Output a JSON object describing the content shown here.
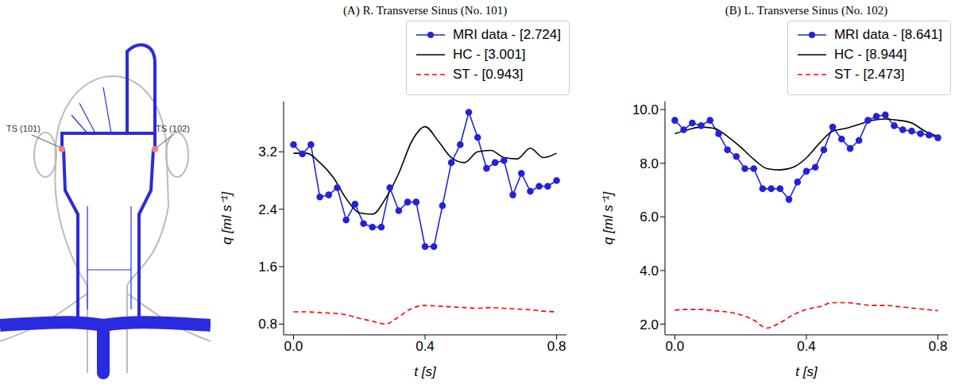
{
  "diagram": {
    "labels": [
      "TS (101)",
      "TS (102)"
    ]
  },
  "chart_data": [
    {
      "type": "line",
      "title": "(A) R. Transverse Sinus (No. 101)",
      "x_label": "t [s]",
      "y_label": "q [ml s⁻¹]",
      "xlim": [
        -0.03,
        0.83
      ],
      "xticks": [
        {
          "value": 0,
          "label": "0.0"
        },
        0.4,
        0.8
      ],
      "ylim": [
        0.65,
        3.9
      ],
      "yticks": [
        0.8,
        1.6,
        2.4,
        3.2
      ],
      "legend": "top",
      "series": [
        {
          "name": "MRI data - [2.724]",
          "color": "#2222dd",
          "marker": "circle",
          "line_style": "solid",
          "x": [
            0,
            0.027,
            0.053,
            0.08,
            0.107,
            0.133,
            0.16,
            0.187,
            0.213,
            0.24,
            0.267,
            0.293,
            0.32,
            0.347,
            0.373,
            0.4,
            0.427,
            0.453,
            0.48,
            0.507,
            0.533,
            0.56,
            0.587,
            0.613,
            0.64,
            0.667,
            0.693,
            0.72,
            0.747,
            0.773,
            0.8
          ],
          "values": [
            3.3,
            3.17,
            3.3,
            2.57,
            2.6,
            2.7,
            2.25,
            2.47,
            2.2,
            2.15,
            2.15,
            2.7,
            2.38,
            2.5,
            2.5,
            1.88,
            1.88,
            2.45,
            3.05,
            3.3,
            3.75,
            3.4,
            2.97,
            3.05,
            3.08,
            2.6,
            2.9,
            2.65,
            2.72,
            2.72,
            2.8
          ]
        },
        {
          "name": "HC - [3.001]",
          "color": "#000000",
          "marker": "none",
          "line_style": "solid",
          "x": [
            0,
            0.04,
            0.08,
            0.12,
            0.16,
            0.2,
            0.24,
            0.28,
            0.32,
            0.36,
            0.4,
            0.44,
            0.48,
            0.52,
            0.56,
            0.6,
            0.64,
            0.68,
            0.72,
            0.76,
            0.8
          ],
          "values": [
            3.18,
            3.18,
            3.05,
            2.85,
            2.55,
            2.35,
            2.33,
            2.55,
            2.9,
            3.35,
            3.55,
            3.35,
            3.12,
            3.05,
            3.2,
            3.22,
            3.12,
            3.1,
            3.25,
            3.12,
            3.18
          ]
        },
        {
          "name": "ST - [0.943]",
          "color": "#ff0000",
          "marker": "none",
          "line_style": "dashed",
          "x": [
            0,
            0.04,
            0.08,
            0.12,
            0.16,
            0.2,
            0.24,
            0.28,
            0.32,
            0.36,
            0.4,
            0.44,
            0.48,
            0.52,
            0.56,
            0.6,
            0.64,
            0.68,
            0.72,
            0.76,
            0.8
          ],
          "values": [
            0.97,
            0.97,
            0.96,
            0.95,
            0.93,
            0.88,
            0.84,
            0.8,
            0.9,
            1.02,
            1.06,
            1.05,
            1.04,
            1.03,
            1.02,
            1.03,
            1.02,
            1.01,
            1.0,
            0.98,
            0.97
          ]
        }
      ]
    },
    {
      "type": "line",
      "title": "(B) L. Transverse Sinus (No. 102)",
      "x_label": "t [s]",
      "y_label": "q [ml s⁻¹]",
      "xlim": [
        -0.03,
        0.83
      ],
      "xticks": [
        {
          "value": 0,
          "label": "0.0"
        },
        0.4,
        0.8
      ],
      "ylim": [
        1.6,
        10.3
      ],
      "yticks": [
        {
          "value": 2,
          "label": "2.0"
        },
        {
          "value": 4,
          "label": "4.0"
        },
        {
          "value": 6,
          "label": "6.0"
        },
        {
          "value": 8,
          "label": "8.0"
        },
        {
          "value": 10,
          "label": "10.0"
        }
      ],
      "legend": "top",
      "series": [
        {
          "name": "MRI data - [8.641]",
          "color": "#2222dd",
          "marker": "circle",
          "line_style": "solid",
          "x": [
            0,
            0.027,
            0.053,
            0.08,
            0.107,
            0.133,
            0.16,
            0.187,
            0.213,
            0.24,
            0.267,
            0.293,
            0.32,
            0.347,
            0.373,
            0.4,
            0.427,
            0.453,
            0.48,
            0.507,
            0.533,
            0.56,
            0.587,
            0.613,
            0.64,
            0.667,
            0.693,
            0.72,
            0.747,
            0.773,
            0.8
          ],
          "values": [
            9.6,
            9.25,
            9.5,
            9.4,
            9.6,
            9.1,
            8.5,
            8.25,
            7.8,
            7.8,
            7.05,
            7.05,
            7.05,
            6.65,
            7.3,
            7.7,
            7.85,
            8.5,
            9.35,
            8.9,
            8.55,
            8.85,
            9.6,
            9.75,
            9.8,
            9.4,
            9.25,
            9.2,
            9.1,
            9.05,
            8.95
          ]
        },
        {
          "name": "HC - [8.944]",
          "color": "#000000",
          "marker": "none",
          "line_style": "solid",
          "x": [
            0,
            0.04,
            0.08,
            0.12,
            0.16,
            0.2,
            0.24,
            0.28,
            0.32,
            0.36,
            0.4,
            0.44,
            0.48,
            0.52,
            0.56,
            0.6,
            0.64,
            0.68,
            0.72,
            0.76,
            0.8
          ],
          "values": [
            9.1,
            9.25,
            9.35,
            9.3,
            9.0,
            8.6,
            8.15,
            7.8,
            7.75,
            7.85,
            8.2,
            8.75,
            9.2,
            9.3,
            9.45,
            9.6,
            9.65,
            9.6,
            9.5,
            9.2,
            9.0
          ]
        },
        {
          "name": "ST - [2.473]",
          "color": "#ff0000",
          "marker": "none",
          "line_style": "dashed",
          "x": [
            0,
            0.04,
            0.08,
            0.12,
            0.16,
            0.2,
            0.24,
            0.28,
            0.32,
            0.36,
            0.4,
            0.44,
            0.48,
            0.52,
            0.56,
            0.6,
            0.64,
            0.68,
            0.72,
            0.76,
            0.8
          ],
          "values": [
            2.52,
            2.55,
            2.55,
            2.5,
            2.45,
            2.35,
            2.15,
            1.85,
            2.05,
            2.35,
            2.55,
            2.65,
            2.8,
            2.8,
            2.75,
            2.7,
            2.7,
            2.65,
            2.6,
            2.55,
            2.5
          ]
        }
      ]
    }
  ]
}
